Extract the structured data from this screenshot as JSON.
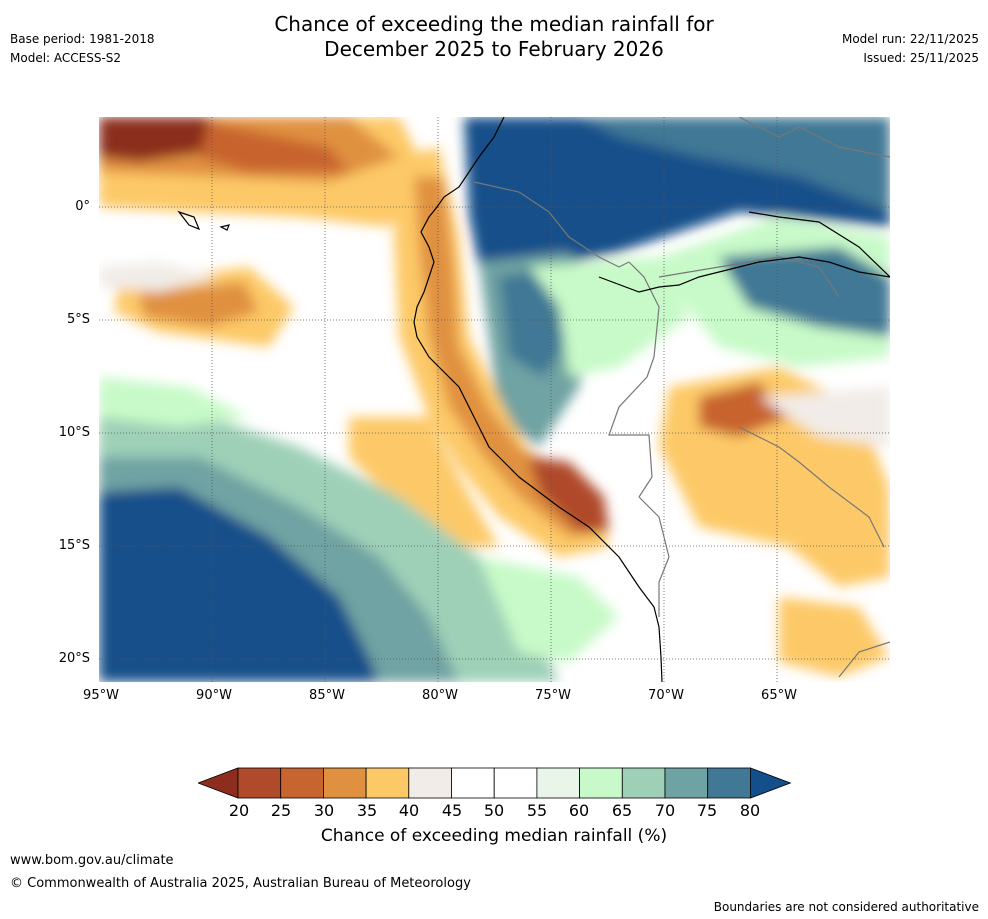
{
  "header": {
    "title_line1": "Chance of exceeding the median rainfall for",
    "title_line2": "December 2025 to February 2026",
    "base_period": "Base period: 1981-2018",
    "model": "Model: ACCESS-S2",
    "model_run": "Model run: 22/11/2025",
    "issued": "Issued: 25/11/2025"
  },
  "map": {
    "lat_labels": [
      "0°",
      "5°S",
      "10°S",
      "15°S",
      "20°S"
    ],
    "lon_labels": [
      "95°W",
      "90°W",
      "85°W",
      "80°W",
      "75°W",
      "70°W",
      "65°W"
    ]
  },
  "legend": {
    "ticks": [
      "20",
      "25",
      "30",
      "35",
      "40",
      "45",
      "50",
      "55",
      "60",
      "65",
      "70",
      "75",
      "80"
    ],
    "colors": [
      "#8c2d1e",
      "#b04a2a",
      "#c8642f",
      "#e0913f",
      "#fdc967",
      "#f1ece7",
      "#ffffff",
      "#ffffff",
      "#e8f5e8",
      "#c7fac8",
      "#9ed0b7",
      "#6fa3a3",
      "#407895",
      "#134f8a"
    ],
    "title": "Chance of exceeding median rainfall (%)"
  },
  "footer": {
    "website": "www.bom.gov.au/climate",
    "copyright": "© Commonwealth of Australia 2025, Australian Bureau of Meteorology",
    "disclaimer": "Boundaries are not considered authoritative"
  }
}
